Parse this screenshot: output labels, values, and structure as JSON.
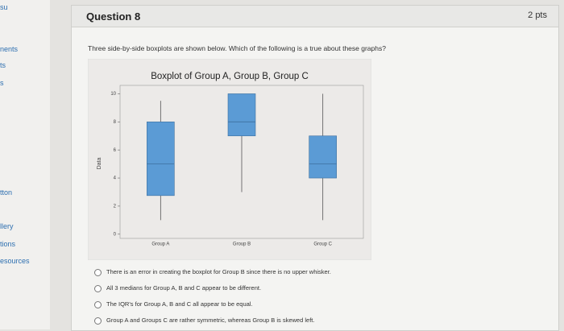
{
  "sidebar": [
    "su",
    "nents",
    "ts",
    "s",
    "tton",
    "llery",
    "tions",
    "esources"
  ],
  "question": {
    "title": "Question 8",
    "points": "2 pts",
    "prompt": "Three side-by-side boxplots are shown below. Which of the following is a true about these graphs?",
    "chart": {
      "type": "boxplot",
      "title": "Boxplot of Group A, Group B, Group C",
      "y_label": "Data",
      "categories": [
        "Group A",
        "Group B",
        "Group C"
      ],
      "color": "#5b9bd5",
      "ylim": [
        -0.3,
        10.6
      ],
      "yticks": [
        0,
        2,
        4,
        6,
        8,
        10
      ],
      "min": [
        1,
        3,
        1
      ],
      "q1": [
        2.75,
        7,
        4
      ],
      "median": [
        5,
        8,
        5
      ],
      "q3": [
        8,
        10,
        7
      ],
      "max": [
        9.5,
        10,
        10
      ]
    },
    "options": [
      "There is an error in creating the boxplot for Group B since there is no upper whisker.",
      "All 3 medians for Group A, B and C appear to be different.",
      "The IQR's for Group A, B and C all appear to be equal.",
      "Group A and Groups C are rather symmetric, whereas Group B is skewed left."
    ]
  }
}
